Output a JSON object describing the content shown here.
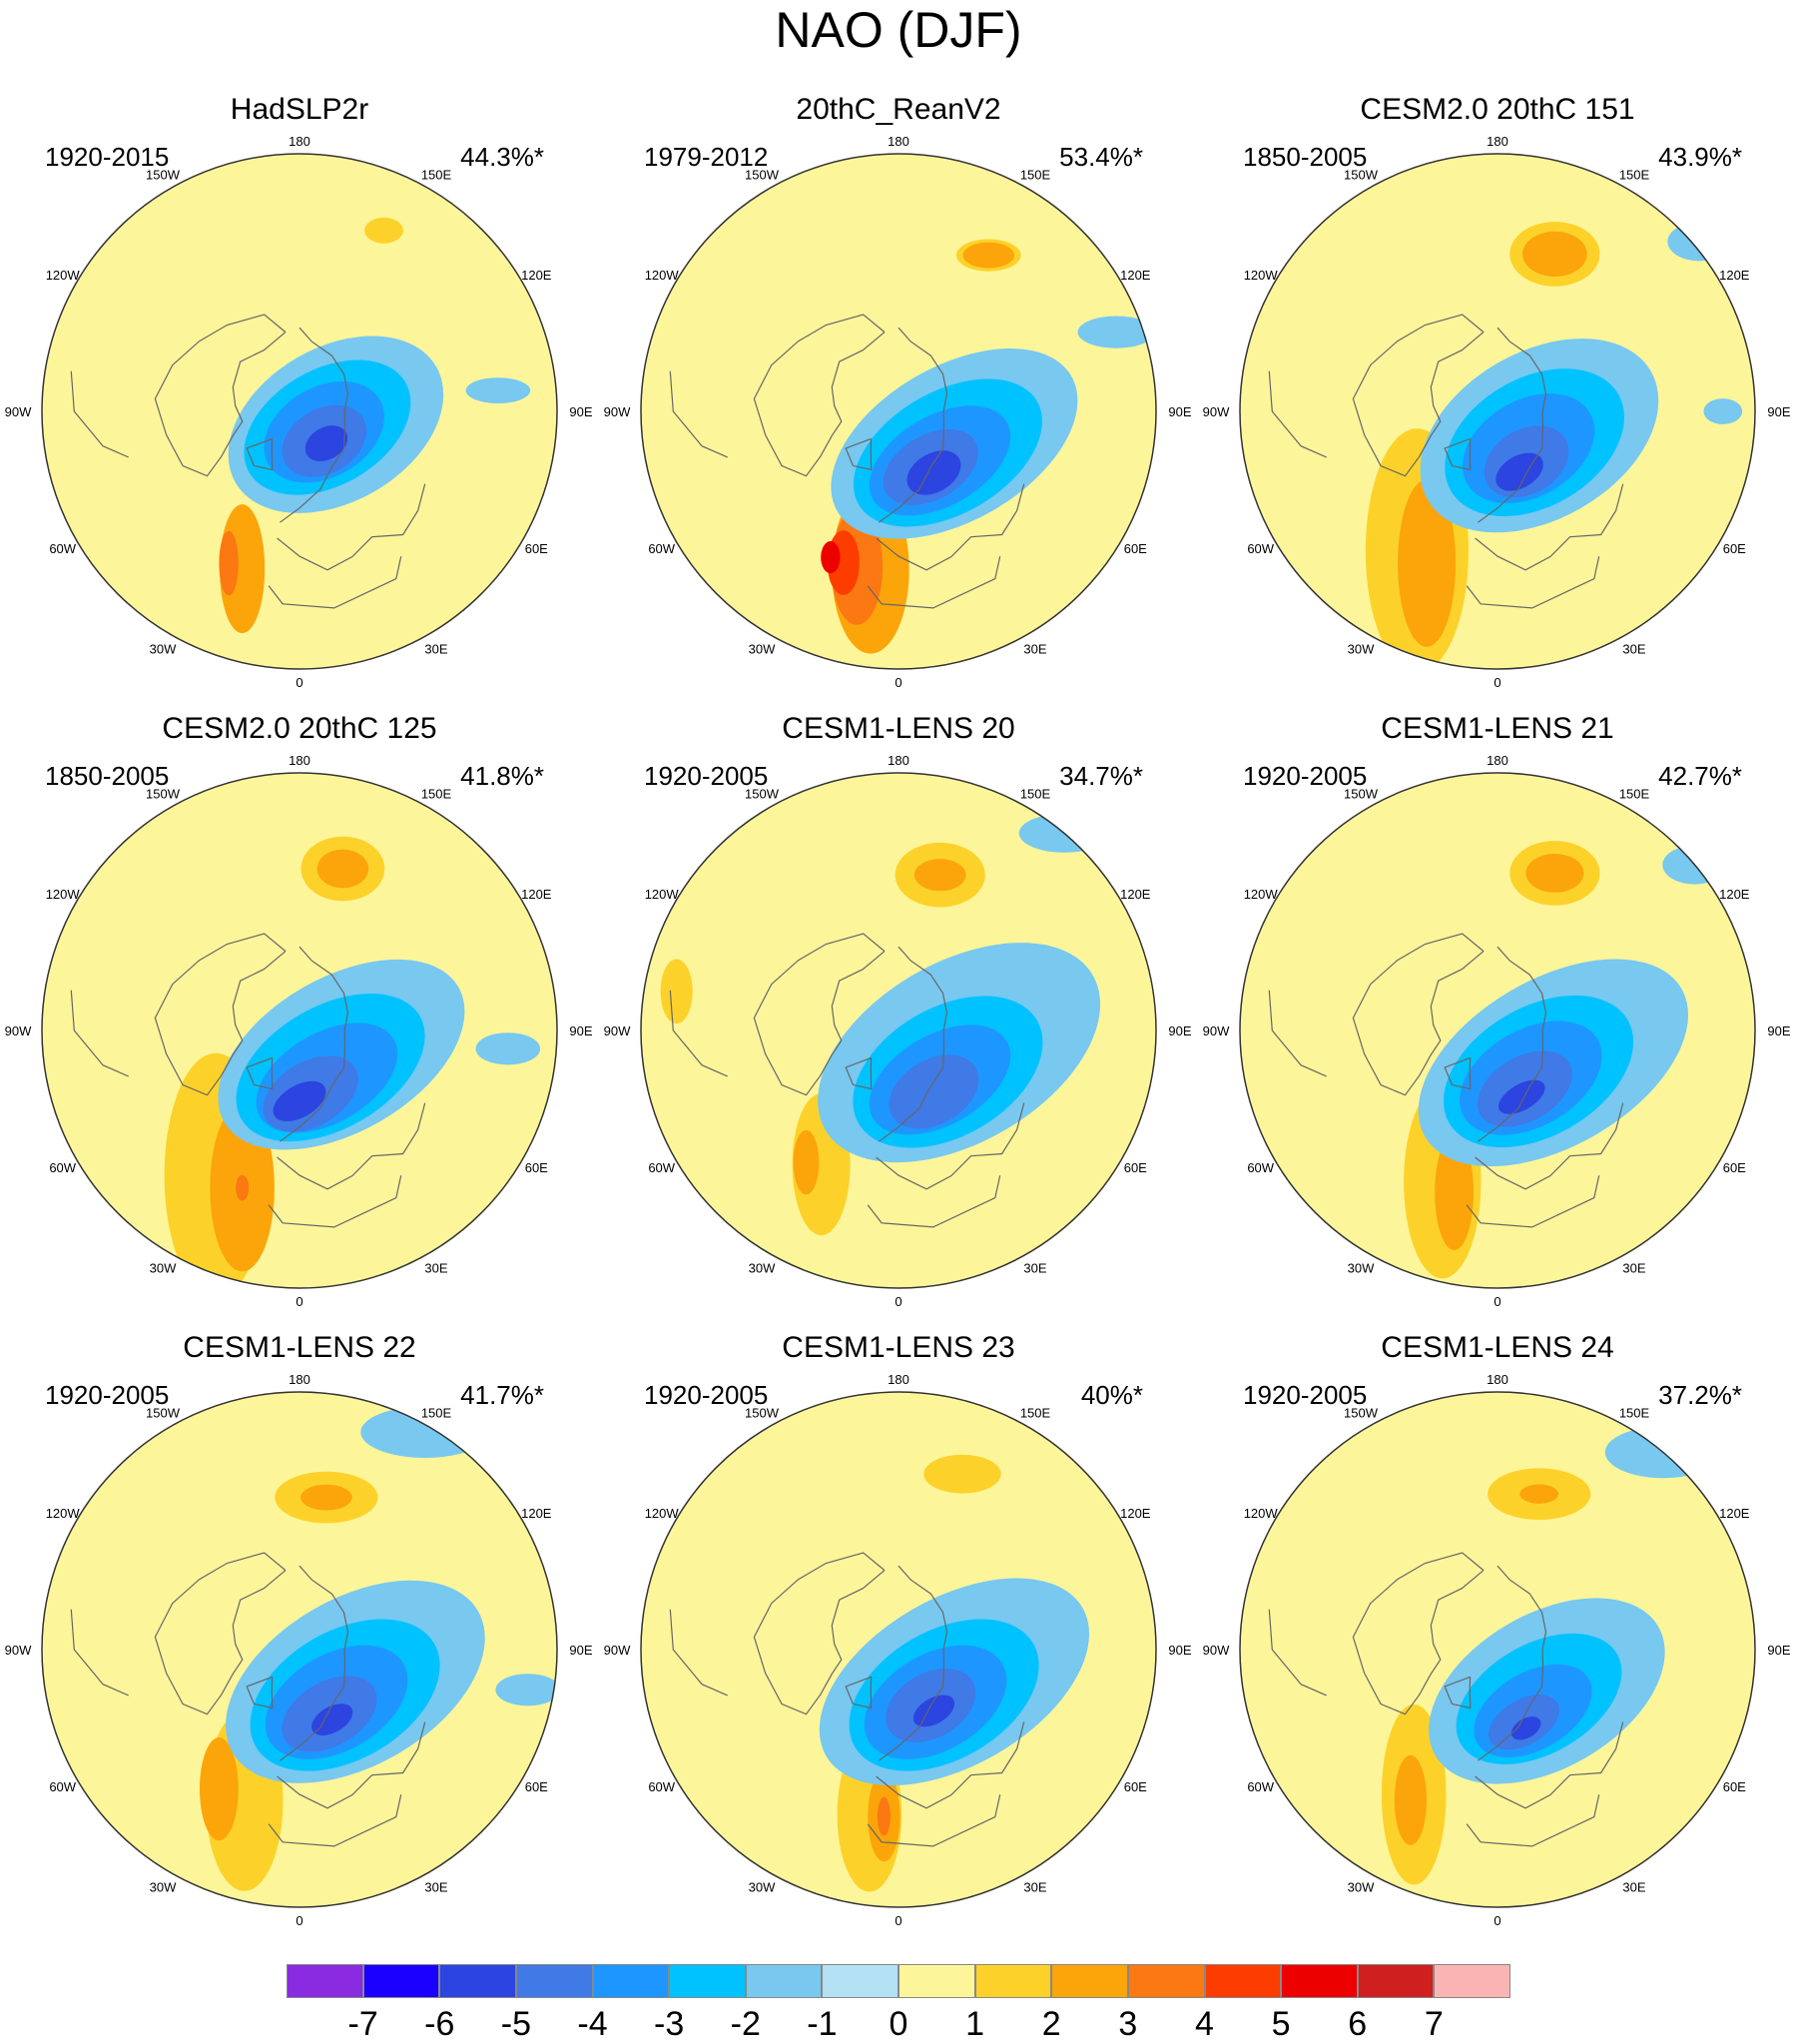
{
  "title": "NAO (DJF)",
  "panels": [
    {
      "name": "HadSLP2r",
      "years": "1920-2015",
      "variance": "44.3%*",
      "blobs": [
        {
          "level": 2,
          "lon": -20,
          "colat": 52,
          "a": 20,
          "b": 7,
          "rot": 90
        },
        {
          "level": 3,
          "lon": -25,
          "colat": 52,
          "a": 10,
          "b": 3,
          "rot": 90
        },
        {
          "level": 1,
          "lon": 155,
          "colat": 62,
          "a": 6,
          "b": 4,
          "rot": 0
        },
        {
          "level": -1,
          "lon": 70,
          "colat": 12,
          "a": 36,
          "b": 24,
          "rot": -30
        },
        {
          "level": -1,
          "lon": 96,
          "colat": 62,
          "a": 10,
          "b": 4,
          "rot": 0
        },
        {
          "level": -2,
          "lon": 60,
          "colat": 10,
          "a": 28,
          "b": 18,
          "rot": -30
        },
        {
          "level": -3,
          "lon": 50,
          "colat": 10,
          "a": 20,
          "b": 14,
          "rot": -30
        },
        {
          "level": -4,
          "lon": 40,
          "colat": 12,
          "a": 14,
          "b": 10,
          "rot": -30
        },
        {
          "level": -5,
          "lon": 40,
          "colat": 13,
          "a": 7,
          "b": 5,
          "rot": -30
        }
      ]
    },
    {
      "name": "20thC_ReanV2",
      "years": "1979-2012",
      "variance": "53.4%*",
      "blobs": [
        {
          "level": 1,
          "lon": 150,
          "colat": 56,
          "a": 10,
          "b": 5,
          "rot": 0
        },
        {
          "level": 2,
          "lon": 150,
          "colat": 56,
          "a": 8,
          "b": 4,
          "rot": 0
        },
        {
          "level": 2,
          "lon": -10,
          "colat": 50,
          "a": 26,
          "b": 12,
          "rot": 90
        },
        {
          "level": 3,
          "lon": -15,
          "colat": 50,
          "a": 18,
          "b": 8,
          "rot": 90
        },
        {
          "level": 4,
          "lon": -20,
          "colat": 50,
          "a": 10,
          "b": 5,
          "rot": 90
        },
        {
          "level": 5,
          "lon": -25,
          "colat": 50,
          "a": 5,
          "b": 3,
          "rot": 90
        },
        {
          "level": -1,
          "lon": 60,
          "colat": 20,
          "a": 42,
          "b": 24,
          "rot": -30
        },
        {
          "level": -2,
          "lon": 50,
          "colat": 20,
          "a": 32,
          "b": 19,
          "rot": -30
        },
        {
          "level": -3,
          "lon": 40,
          "colat": 20,
          "a": 24,
          "b": 14,
          "rot": -30
        },
        {
          "level": -4,
          "lon": 30,
          "colat": 20,
          "a": 16,
          "b": 10,
          "rot": -30
        },
        {
          "level": -5,
          "lon": 30,
          "colat": 22,
          "a": 9,
          "b": 6,
          "rot": -30
        },
        {
          "level": -1,
          "lon": 110,
          "colat": 72,
          "a": 12,
          "b": 5,
          "rot": 0
        }
      ]
    },
    {
      "name": "CESM2.0 20thC 151",
      "years": "1850-2005",
      "variance": "43.9%*",
      "blobs": [
        {
          "level": 1,
          "lon": -30,
          "colat": 50,
          "a": 38,
          "b": 16,
          "rot": 90
        },
        {
          "level": 2,
          "lon": -25,
          "colat": 52,
          "a": 26,
          "b": 9,
          "rot": 90
        },
        {
          "level": 1,
          "lon": 160,
          "colat": 52,
          "a": 14,
          "b": 10,
          "rot": 0
        },
        {
          "level": 2,
          "lon": 160,
          "colat": 52,
          "a": 10,
          "b": 7,
          "rot": 0
        },
        {
          "level": -1,
          "lon": 60,
          "colat": 15,
          "a": 40,
          "b": 26,
          "rot": -30
        },
        {
          "level": -2,
          "lon": 50,
          "colat": 15,
          "a": 30,
          "b": 20,
          "rot": -30
        },
        {
          "level": -3,
          "lon": 40,
          "colat": 15,
          "a": 22,
          "b": 15,
          "rot": -30
        },
        {
          "level": -4,
          "lon": 30,
          "colat": 18,
          "a": 14,
          "b": 10,
          "rot": -30
        },
        {
          "level": -5,
          "lon": 20,
          "colat": 20,
          "a": 8,
          "b": 5,
          "rot": -30
        },
        {
          "level": -1,
          "lon": 130,
          "colat": 82,
          "a": 10,
          "b": 6,
          "rot": 0
        },
        {
          "level": -1,
          "lon": 90,
          "colat": 70,
          "a": 6,
          "b": 4,
          "rot": 0
        }
      ]
    },
    {
      "name": "CESM2.0 20thC 125",
      "years": "1850-2005",
      "variance": "41.8%*",
      "blobs": [
        {
          "level": 1,
          "lon": -30,
          "colat": 52,
          "a": 38,
          "b": 16,
          "rot": 90
        },
        {
          "level": 2,
          "lon": -20,
          "colat": 52,
          "a": 26,
          "b": 10,
          "rot": 90
        },
        {
          "level": 3,
          "lon": -20,
          "colat": 52,
          "a": 4,
          "b": 2,
          "rot": 90
        },
        {
          "level": 1,
          "lon": 165,
          "colat": 52,
          "a": 13,
          "b": 10,
          "rot": 0
        },
        {
          "level": 2,
          "lon": 165,
          "colat": 52,
          "a": 8,
          "b": 6,
          "rot": 0
        },
        {
          "level": -1,
          "lon": 60,
          "colat": 15,
          "a": 42,
          "b": 24,
          "rot": -30
        },
        {
          "level": -2,
          "lon": 40,
          "colat": 15,
          "a": 32,
          "b": 19,
          "rot": -30
        },
        {
          "level": -3,
          "lon": 30,
          "colat": 17,
          "a": 24,
          "b": 14,
          "rot": -30
        },
        {
          "level": -4,
          "lon": 10,
          "colat": 20,
          "a": 16,
          "b": 10,
          "rot": -30
        },
        {
          "level": -5,
          "lon": 0,
          "colat": 22,
          "a": 9,
          "b": 5,
          "rot": -30
        },
        {
          "level": -1,
          "lon": 85,
          "colat": 65,
          "a": 10,
          "b": 5,
          "rot": 0
        }
      ]
    },
    {
      "name": "CESM1-LENS 20",
      "years": "1920-2005",
      "variance": "34.7%*",
      "blobs": [
        {
          "level": 1,
          "lon": -30,
          "colat": 48,
          "a": 22,
          "b": 9,
          "rot": 90
        },
        {
          "level": 2,
          "lon": -35,
          "colat": 50,
          "a": 10,
          "b": 4,
          "rot": 90
        },
        {
          "level": 1,
          "lon": 165,
          "colat": 50,
          "a": 14,
          "b": 10,
          "rot": 0
        },
        {
          "level": 2,
          "lon": 165,
          "colat": 50,
          "a": 8,
          "b": 5,
          "rot": 0
        },
        {
          "level": 1,
          "lon": -100,
          "colat": 70,
          "a": 5,
          "b": 10,
          "rot": 0
        },
        {
          "level": -1,
          "lon": 70,
          "colat": 20,
          "a": 48,
          "b": 28,
          "rot": -30
        },
        {
          "level": -1,
          "lon": 140,
          "colat": 80,
          "a": 14,
          "b": 6,
          "rot": 0
        },
        {
          "level": -2,
          "lon": 50,
          "colat": 20,
          "a": 32,
          "b": 20,
          "rot": -30
        },
        {
          "level": -3,
          "lon": 40,
          "colat": 20,
          "a": 24,
          "b": 14,
          "rot": -30
        },
        {
          "level": -4,
          "lon": 30,
          "colat": 22,
          "a": 15,
          "b": 10,
          "rot": -30
        }
      ]
    },
    {
      "name": "CESM1-LENS 21",
      "years": "1920-2005",
      "variance": "42.7%*",
      "blobs": [
        {
          "level": 1,
          "lon": -20,
          "colat": 50,
          "a": 30,
          "b": 12,
          "rot": 90
        },
        {
          "level": 2,
          "lon": -15,
          "colat": 52,
          "a": 18,
          "b": 6,
          "rot": 90
        },
        {
          "level": 1,
          "lon": 160,
          "colat": 52,
          "a": 14,
          "b": 10,
          "rot": 0
        },
        {
          "level": 2,
          "lon": 160,
          "colat": 52,
          "a": 9,
          "b": 6,
          "rot": 0
        },
        {
          "level": -1,
          "lon": 60,
          "colat": 20,
          "a": 46,
          "b": 26,
          "rot": -30
        },
        {
          "level": -1,
          "lon": 130,
          "colat": 80,
          "a": 10,
          "b": 6,
          "rot": 0
        },
        {
          "level": -2,
          "lon": 45,
          "colat": 18,
          "a": 32,
          "b": 20,
          "rot": -30
        },
        {
          "level": -3,
          "lon": 35,
          "colat": 18,
          "a": 24,
          "b": 15,
          "rot": -30
        },
        {
          "level": -4,
          "lon": 25,
          "colat": 20,
          "a": 16,
          "b": 10,
          "rot": -30
        },
        {
          "level": -5,
          "lon": 20,
          "colat": 22,
          "a": 8,
          "b": 4,
          "rot": -30
        }
      ]
    },
    {
      "name": "CESM1-LENS 22",
      "years": "1920-2005",
      "variance": "41.7%*",
      "blobs": [
        {
          "level": 1,
          "lon": -20,
          "colat": 50,
          "a": 28,
          "b": 12,
          "rot": 90
        },
        {
          "level": 2,
          "lon": -30,
          "colat": 50,
          "a": 16,
          "b": 6,
          "rot": 90
        },
        {
          "level": 1,
          "lon": 170,
          "colat": 48,
          "a": 16,
          "b": 8,
          "rot": 0
        },
        {
          "level": 2,
          "lon": 170,
          "colat": 48,
          "a": 8,
          "b": 4,
          "rot": 0
        },
        {
          "level": -1,
          "lon": 150,
          "colat": 78,
          "a": 20,
          "b": 8,
          "rot": 0
        },
        {
          "level": -1,
          "lon": 60,
          "colat": 20,
          "a": 44,
          "b": 26,
          "rot": -30
        },
        {
          "level": -2,
          "lon": 45,
          "colat": 20,
          "a": 32,
          "b": 20,
          "rot": -30
        },
        {
          "level": -3,
          "lon": 35,
          "colat": 20,
          "a": 24,
          "b": 15,
          "rot": -30
        },
        {
          "level": -4,
          "lon": 25,
          "colat": 22,
          "a": 16,
          "b": 10,
          "rot": -30
        },
        {
          "level": -5,
          "lon": 25,
          "colat": 24,
          "a": 7,
          "b": 4,
          "rot": -30
        },
        {
          "level": -1,
          "lon": 80,
          "colat": 72,
          "a": 10,
          "b": 5,
          "rot": 0
        }
      ]
    },
    {
      "name": "CESM1-LENS 23",
      "years": "1920-2005",
      "variance": "40%*",
      "blobs": [
        {
          "level": 1,
          "lon": -10,
          "colat": 52,
          "a": 24,
          "b": 10,
          "rot": 90
        },
        {
          "level": 2,
          "lon": -5,
          "colat": 52,
          "a": 14,
          "b": 5,
          "rot": 90
        },
        {
          "level": 3,
          "lon": -5,
          "colat": 52,
          "a": 6,
          "b": 2,
          "rot": 90
        },
        {
          "level": 1,
          "lon": 160,
          "colat": 58,
          "a": 12,
          "b": 6,
          "rot": 0
        },
        {
          "level": -1,
          "lon": 60,
          "colat": 20,
          "a": 46,
          "b": 26,
          "rot": -30
        },
        {
          "level": -2,
          "lon": 45,
          "colat": 20,
          "a": 32,
          "b": 20,
          "rot": -30
        },
        {
          "level": -3,
          "lon": 35,
          "colat": 20,
          "a": 24,
          "b": 15,
          "rot": -30
        },
        {
          "level": -4,
          "lon": 30,
          "colat": 20,
          "a": 15,
          "b": 10,
          "rot": -30
        },
        {
          "level": -5,
          "lon": 30,
          "colat": 22,
          "a": 7,
          "b": 4,
          "rot": -30
        }
      ]
    },
    {
      "name": "CESM1-LENS 24",
      "years": "1920-2005",
      "variance": "37.2%*",
      "blobs": [
        {
          "level": 1,
          "lon": -30,
          "colat": 52,
          "a": 28,
          "b": 10,
          "rot": 90
        },
        {
          "level": 2,
          "lon": -30,
          "colat": 54,
          "a": 14,
          "b": 5,
          "rot": 90
        },
        {
          "level": 1,
          "lon": 165,
          "colat": 50,
          "a": 16,
          "b": 8,
          "rot": 0
        },
        {
          "level": 2,
          "lon": 165,
          "colat": 50,
          "a": 6,
          "b": 3,
          "rot": 0
        },
        {
          "level": -1,
          "lon": 140,
          "colat": 80,
          "a": 18,
          "b": 8,
          "rot": 0
        },
        {
          "level": -1,
          "lon": 50,
          "colat": 20,
          "a": 40,
          "b": 24,
          "rot": -30
        },
        {
          "level": -2,
          "lon": 40,
          "colat": 20,
          "a": 28,
          "b": 17,
          "rot": -30
        },
        {
          "level": -3,
          "lon": 30,
          "colat": 22,
          "a": 20,
          "b": 12,
          "rot": -30
        },
        {
          "level": -4,
          "lon": 20,
          "colat": 24,
          "a": 12,
          "b": 7,
          "rot": -30
        },
        {
          "level": -5,
          "lon": 20,
          "colat": 26,
          "a": 5,
          "b": 3,
          "rot": -30
        }
      ]
    }
  ],
  "longitude_labels": [
    {
      "text": "180",
      "lon": 180
    },
    {
      "text": "150W",
      "lon": -150
    },
    {
      "text": "150E",
      "lon": 150
    },
    {
      "text": "120W",
      "lon": -120
    },
    {
      "text": "120E",
      "lon": 120
    },
    {
      "text": "90W",
      "lon": -90
    },
    {
      "text": "90E",
      "lon": 90
    },
    {
      "text": "60W",
      "lon": -60
    },
    {
      "text": "60E",
      "lon": 60
    },
    {
      "text": "30W",
      "lon": -30
    },
    {
      "text": "30E",
      "lon": 30
    },
    {
      "text": "0",
      "lon": 0
    }
  ],
  "colorbar": {
    "ticks": [
      "-7",
      "-6",
      "-5",
      "-4",
      "-3",
      "-2",
      "-1",
      "0",
      "1",
      "2",
      "3",
      "4",
      "5",
      "6",
      "7"
    ],
    "colors": [
      "#8a2be2",
      "#1b00ff",
      "#2c44e0",
      "#3f7ae6",
      "#1e96ff",
      "#00c2ff",
      "#78c8f0",
      "#b4e0f4",
      "#fdf59a",
      "#fcd22a",
      "#fba50a",
      "#fb7812",
      "#fd3c00",
      "#ed0000",
      "#cf1f1f",
      "#fab4b4"
    ]
  },
  "level_colors": {
    "-5": "#2c44e0",
    "-4": "#3f7ae6",
    "-3": "#1e96ff",
    "-2": "#00c2ff",
    "-1": "#78c8f0",
    "-1.5": "#b4e0f4",
    "1": "#fcd22a",
    "2": "#fba50a",
    "3": "#fb7812",
    "4": "#fd3c00",
    "5": "#ed0000",
    "0": "#fdf59a"
  },
  "map_style": {
    "background": "#fdf59a",
    "coast": "#666666",
    "outline": "#333333"
  }
}
